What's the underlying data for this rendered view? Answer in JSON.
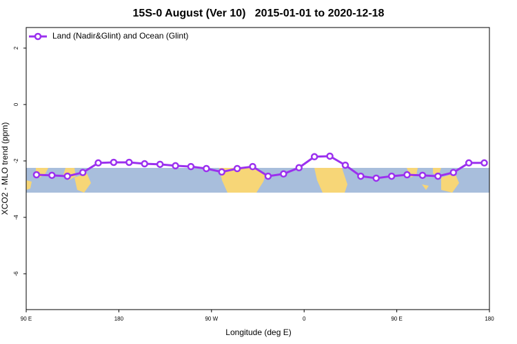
{
  "chart_data": {
    "type": "line",
    "title": "15S-0 August (Ver 10)   2015-01-01 to 2020-12-18",
    "x_label": "Longitude (deg E)",
    "y_label": "XCO2 - MLO trend (ppm)",
    "x": [
      100,
      115,
      130,
      145,
      160,
      175,
      190,
      205,
      220,
      235,
      250,
      265,
      280,
      295,
      310,
      325,
      340,
      355,
      370,
      385,
      400,
      415,
      430,
      445,
      460,
      475,
      490,
      505,
      520,
      535
    ],
    "series": [
      {
        "name": "Land (Nadir&Glint) and Ocean (Glint)",
        "color": "#9b30ef",
        "values": [
          -2.49,
          -2.51,
          -2.54,
          -2.41,
          -2.07,
          -2.05,
          -2.05,
          -2.1,
          -2.12,
          -2.17,
          -2.2,
          -2.27,
          -2.39,
          -2.27,
          -2.2,
          -2.54,
          -2.46,
          -2.24,
          -1.85,
          -1.83,
          -2.15,
          -2.54,
          -2.61,
          -2.54,
          -2.49,
          -2.51,
          -2.54,
          -2.41,
          -2.07,
          -2.07
        ]
      }
    ],
    "xlim": [
      90,
      540
    ],
    "xticks": [
      {
        "value": 90,
        "label": "90 E"
      },
      180,
      {
        "value": 270,
        "label": "90 W"
      },
      {
        "value": 360,
        "label": "0"
      },
      {
        "value": 450,
        "label": "90 E"
      },
      {
        "value": 540,
        "label": "180"
      }
    ],
    "ylim": [
      -7.27,
      2.73
    ],
    "yticks": [
      2,
      0,
      -2,
      -4,
      -6
    ],
    "legend": "top-left"
  }
}
